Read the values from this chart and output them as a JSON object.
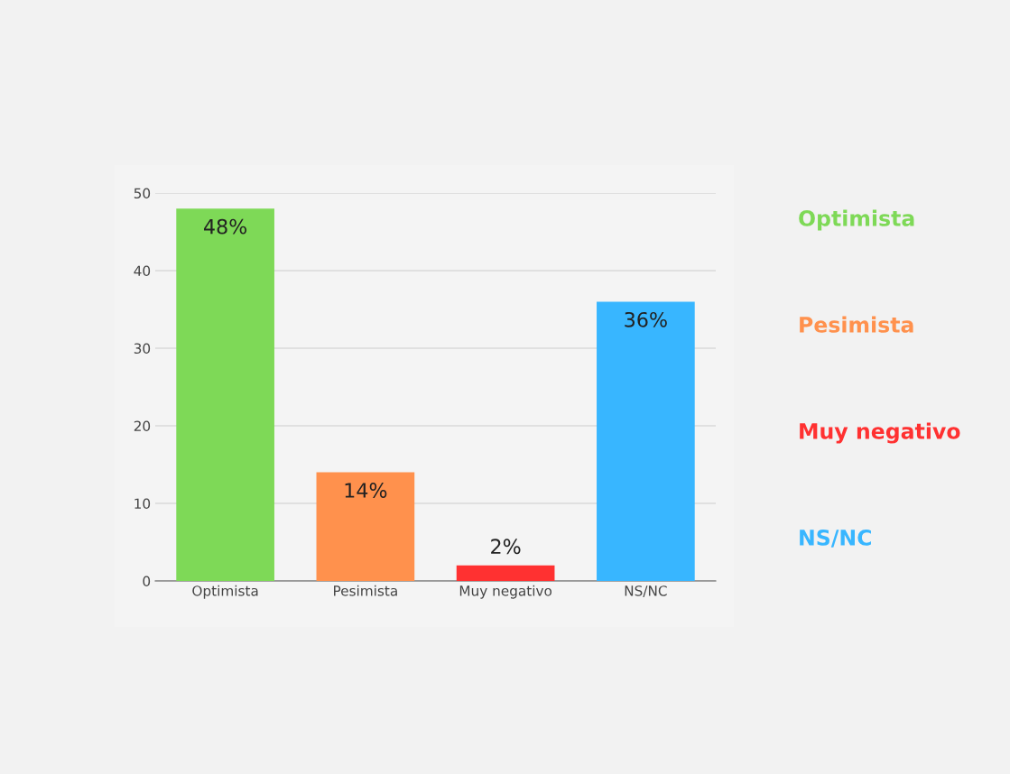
{
  "chart_data": {
    "type": "bar",
    "categories": [
      "Optimista",
      "Pesimista",
      "Muy negativo",
      "NS/NC"
    ],
    "values": [
      48,
      14,
      2,
      36
    ],
    "colors": [
      "#7ed957",
      "#ff914d",
      "#ff3131",
      "#38b6ff"
    ],
    "value_labels": [
      "48%",
      "14%",
      "2%",
      "36%"
    ],
    "ylim": [
      0,
      50
    ],
    "yticks": [
      0,
      10,
      20,
      30,
      40,
      50
    ],
    "grid": "y"
  }
}
